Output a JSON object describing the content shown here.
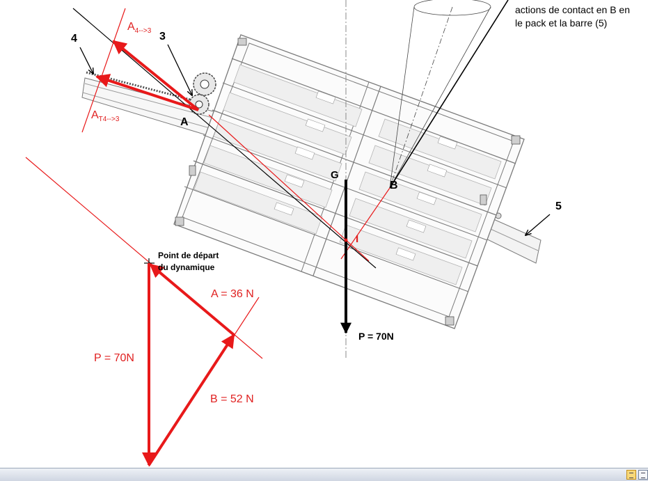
{
  "note": {
    "line1": "actions de contact en B en",
    "line2": "le pack et la barre (5)"
  },
  "labels": {
    "a43_main": "A",
    "a43_sub": "4-->3",
    "at43_main": "A",
    "at43_sub": "T4-->3",
    "part3": "3",
    "part4": "4",
    "part5": "5",
    "pointA": "A",
    "pointG": "G",
    "pointB": "B",
    "pointI": "I",
    "weight": "P = 70N",
    "start1": "Point de départ",
    "start2": "du dynamique",
    "forceA": "A = 36 N",
    "forceP": "P = 70N",
    "forceB": "B = 52 N"
  },
  "colors": {
    "force": "#e8191a",
    "black": "#000000",
    "drawing": "#6d6d6d"
  },
  "statusbar": {
    "view_buttons": [
      "normal-view-icon",
      "page-layout-icon"
    ]
  }
}
